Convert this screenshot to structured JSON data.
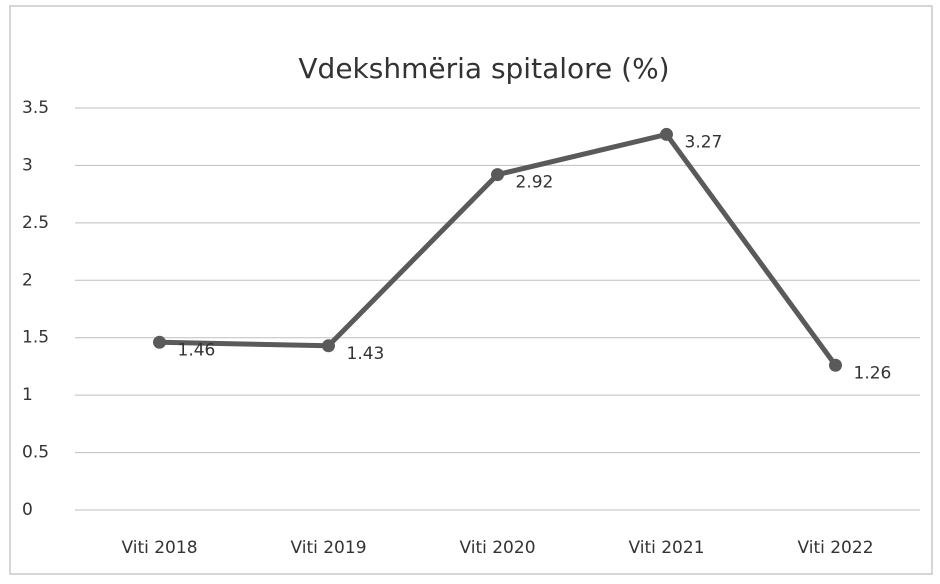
{
  "chart_data": {
    "type": "line",
    "title": "Vdekshmëria spitalore (%)",
    "categories": [
      "Viti 2018",
      "Viti 2019",
      "Viti 2020",
      "Viti 2021",
      "Viti 2022"
    ],
    "values": [
      1.46,
      1.43,
      2.92,
      3.27,
      1.26
    ],
    "color": "#5a5a5a",
    "ylim": [
      0,
      3.5
    ],
    "yticks": [
      0,
      0.5,
      1,
      1.5,
      2,
      2.5,
      3,
      3.5
    ],
    "grid": true
  }
}
